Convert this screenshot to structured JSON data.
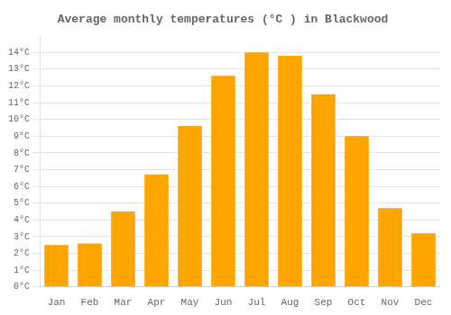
{
  "chart_data": {
    "type": "bar",
    "title": "Average monthly temperatures (°C ) in Blackwood",
    "categories": [
      "Jan",
      "Feb",
      "Mar",
      "Apr",
      "May",
      "Jun",
      "Jul",
      "Aug",
      "Sep",
      "Oct",
      "Nov",
      "Dec"
    ],
    "values": [
      2.5,
      2.6,
      4.5,
      6.7,
      9.6,
      12.6,
      14.0,
      13.8,
      11.5,
      9.0,
      4.7,
      3.2
    ],
    "color": "#FFA500",
    "ylim": [
      0,
      15
    ],
    "yticks": [
      {
        "value": 0,
        "label": "0°C"
      },
      {
        "value": 1,
        "label": "1°C"
      },
      {
        "value": 2,
        "label": "2°C"
      },
      {
        "value": 3,
        "label": "3°C"
      },
      {
        "value": 4,
        "label": "4°C"
      },
      {
        "value": 5,
        "label": "5°C"
      },
      {
        "value": 6,
        "label": "6°C"
      },
      {
        "value": 7,
        "label": "7°C"
      },
      {
        "value": 8,
        "label": "8°C"
      },
      {
        "value": 9,
        "label": "9°C"
      },
      {
        "value": 10,
        "label": "10°C"
      },
      {
        "value": 11,
        "label": "11°C"
      },
      {
        "value": 12,
        "label": "12°C"
      },
      {
        "value": 13,
        "label": "13°C"
      },
      {
        "value": 14,
        "label": "14°C"
      }
    ],
    "grid": true
  }
}
